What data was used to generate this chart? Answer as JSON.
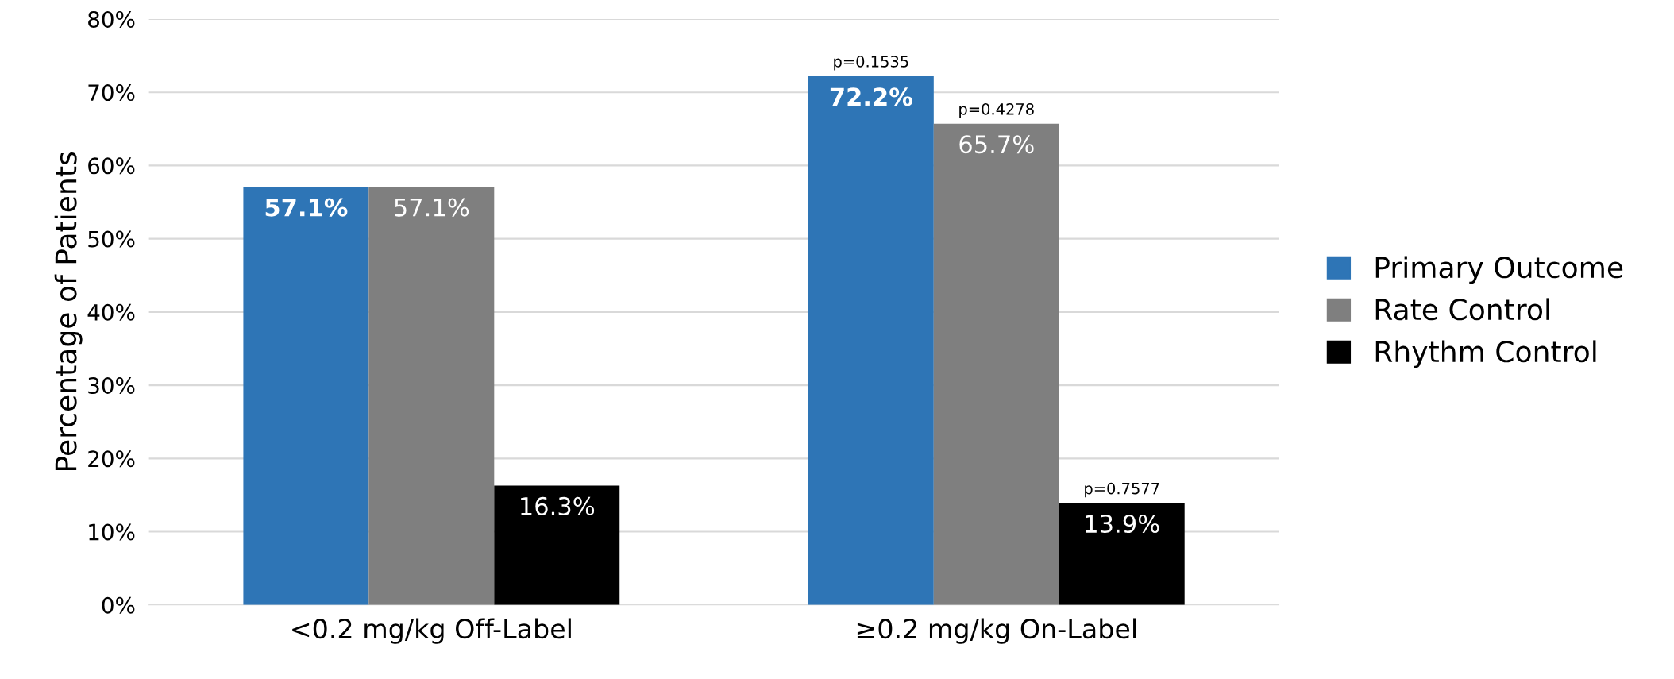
{
  "chart_data": {
    "type": "bar",
    "ylabel": "Percentage of Patients",
    "categories": [
      "<0.2 mg/kg Off-Label",
      "≥0.2 mg/kg On-Label"
    ],
    "series": [
      {
        "name": "Primary Outcome",
        "color": "#2e75b6",
        "values": [
          57.1,
          72.2
        ],
        "value_labels": [
          "57.1%",
          "72.2%"
        ]
      },
      {
        "name": "Rate Control",
        "color": "#7f7f7f",
        "values": [
          57.1,
          65.7
        ],
        "value_labels": [
          "57.1%",
          "65.7%"
        ]
      },
      {
        "name": "Rhythm Control",
        "color": "#000000",
        "values": [
          16.3,
          13.9
        ],
        "value_labels": [
          "16.3%",
          "13.9%"
        ]
      }
    ],
    "ylim": [
      0,
      80
    ],
    "yticks": [
      {
        "value": 0,
        "label": "0%"
      },
      {
        "value": 10,
        "label": "10%"
      },
      {
        "value": 20,
        "label": "20%"
      },
      {
        "value": 30,
        "label": "30%"
      },
      {
        "value": 40,
        "label": "40%"
      },
      {
        "value": 50,
        "label": "50%"
      },
      {
        "value": 60,
        "label": "60%"
      },
      {
        "value": 70,
        "label": "70%"
      },
      {
        "value": 80,
        "label": "80%"
      }
    ],
    "grid": "y",
    "legend": "right",
    "annotations": [
      "p=0.1535",
      "p=0.4278",
      "p=0.7577"
    ]
  }
}
